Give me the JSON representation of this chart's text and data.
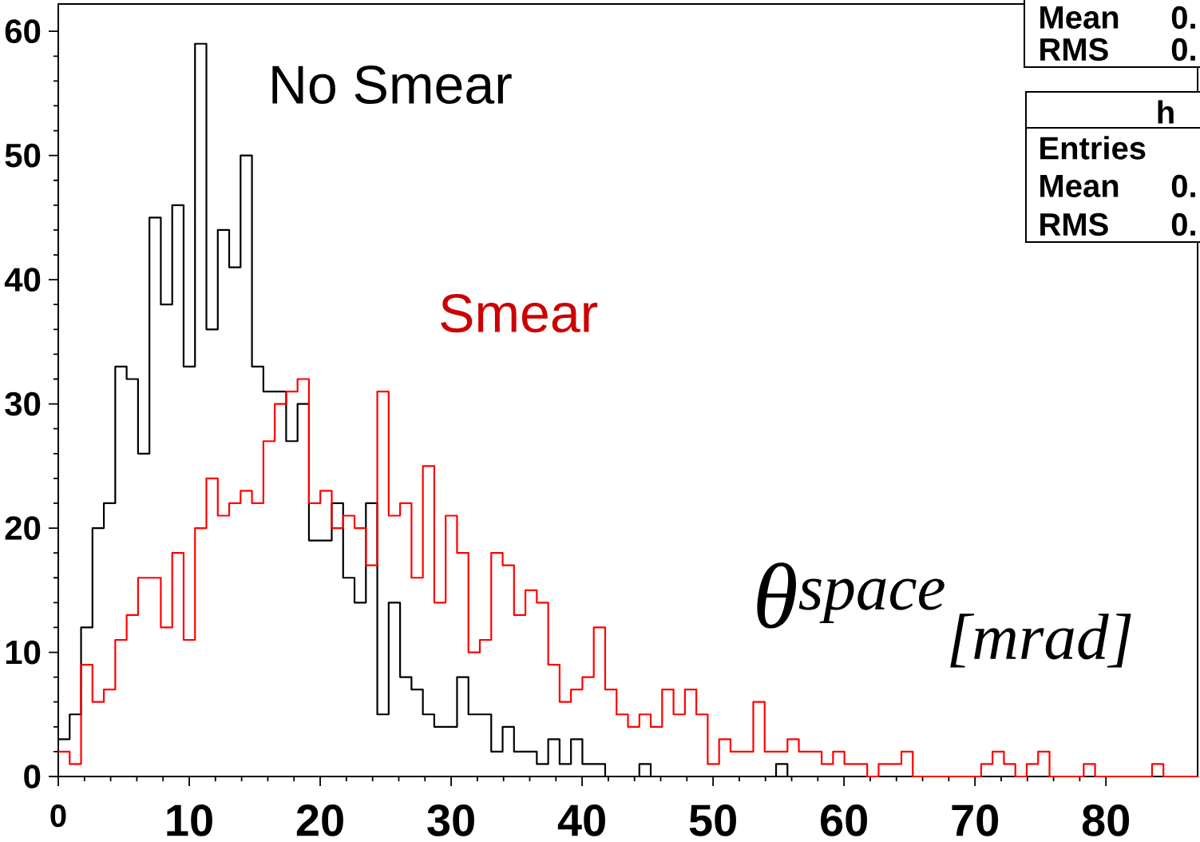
{
  "chart_data": {
    "type": "histogram",
    "xlabel": "θ$^{space}$$_{[mrad]}$",
    "bins": [
      0,
      0.87,
      1.74,
      2.61,
      3.48,
      4.35,
      5.22,
      6.09,
      6.96,
      7.83,
      8.7,
      9.57,
      10.44,
      11.31,
      12.18,
      13.05,
      13.92,
      14.79,
      15.66,
      16.53,
      17.4,
      18.27,
      19.14,
      20.01,
      20.88,
      21.75,
      22.62,
      23.49,
      24.36,
      25.23,
      26.1,
      26.97,
      27.84,
      28.71,
      29.58,
      30.45,
      31.32,
      32.19,
      33.06,
      33.93,
      34.8,
      35.67,
      36.54,
      37.41,
      38.28,
      39.15,
      40.02,
      40.89,
      41.76,
      42.63,
      43.5,
      44.37,
      45.24,
      46.11,
      46.98,
      47.85,
      48.72,
      49.59,
      50.46,
      51.33,
      52.2,
      53.07,
      53.94,
      54.81,
      55.68,
      56.55,
      57.42,
      58.29,
      59.16,
      60.03,
      60.9,
      61.77,
      62.64,
      63.51,
      64.38,
      65.25,
      66.12,
      66.99,
      67.86,
      68.73,
      69.6,
      70.47,
      71.34,
      72.21,
      73.08,
      73.95,
      74.82,
      75.69,
      76.56,
      77.43,
      78.3,
      79.17,
      80.04,
      80.91,
      81.78,
      82.65,
      83.52,
      84.39,
      85.26,
      86.13,
      87
    ],
    "series": [
      {
        "name": "No Smear",
        "color": "#000000",
        "values": [
          3,
          5,
          12,
          20,
          22,
          33,
          32,
          26,
          45,
          38,
          46,
          33,
          59,
          36,
          44,
          41,
          50,
          33,
          31,
          31,
          27,
          30,
          19,
          19,
          22,
          16,
          14,
          22,
          5,
          14,
          8,
          7,
          5,
          4,
          4,
          8,
          5,
          5,
          2,
          4,
          2,
          2,
          1,
          3,
          1,
          3,
          1,
          1,
          0,
          0,
          0,
          1,
          0,
          0,
          0,
          0,
          0,
          0,
          0,
          0,
          0,
          0,
          0,
          1,
          0,
          0,
          0,
          0,
          0,
          0,
          0,
          0,
          0,
          0,
          0,
          0,
          0,
          0,
          0,
          0,
          0,
          0,
          0,
          0,
          0,
          0,
          0,
          0,
          0,
          0,
          0,
          0,
          0,
          0,
          0,
          0,
          0,
          0,
          0,
          0
        ]
      },
      {
        "name": "Smear",
        "color": "#ff0000",
        "values": [
          2,
          1,
          9,
          6,
          7,
          11,
          13,
          16,
          16,
          12,
          18,
          11,
          20,
          24,
          21,
          22,
          23,
          22,
          27,
          30,
          31,
          32,
          22,
          23,
          20,
          21,
          20,
          17,
          31,
          21,
          22,
          16,
          25,
          14,
          21,
          18,
          10,
          11,
          18,
          17,
          13,
          15,
          14,
          9,
          6,
          7,
          8,
          12,
          7,
          5,
          4,
          5,
          4,
          7,
          5,
          7,
          5,
          1,
          3,
          2,
          2,
          6,
          2,
          2,
          3,
          2,
          2,
          1,
          2,
          1,
          1,
          0,
          1,
          1,
          2,
          0,
          0,
          0,
          0,
          0,
          0,
          1,
          2,
          1,
          0,
          1,
          2,
          0,
          0,
          0,
          1,
          0,
          0,
          0,
          0,
          0,
          1,
          0,
          0,
          0
        ]
      }
    ],
    "xlim": [
      0,
      87
    ],
    "ylim": [
      0,
      62.2
    ],
    "xticks": [
      0,
      10,
      20,
      30,
      40,
      50,
      60,
      70,
      80
    ],
    "yticks": [
      0,
      10,
      20,
      30,
      40,
      50,
      60
    ],
    "annotations": [
      "Mean",
      "0.",
      "RMS",
      "0.",
      "h",
      "Entries",
      "Mean",
      "0.",
      "RMS",
      "0."
    ]
  }
}
